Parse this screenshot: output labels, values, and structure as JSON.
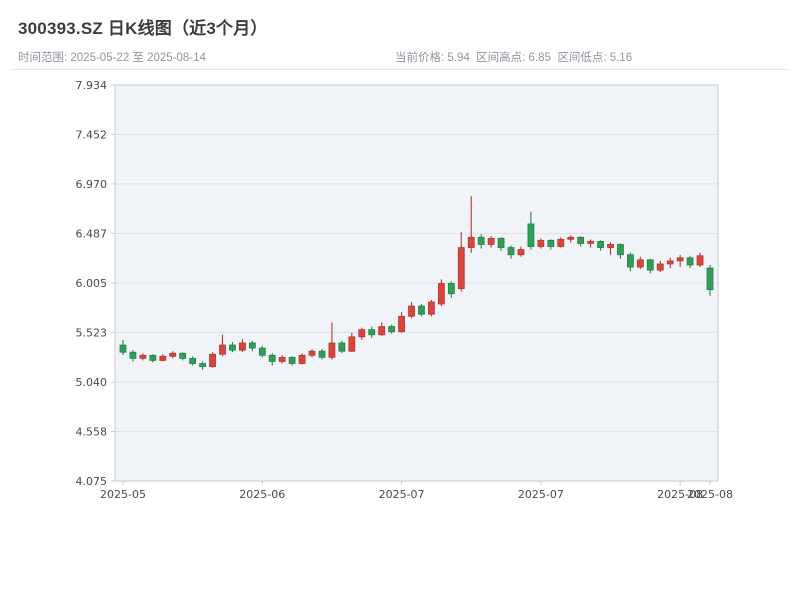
{
  "header": {
    "title": "300393.SZ 日K线图（近3个月）",
    "time_range": "时间范围: 2025-05-22 至 2025-08-14",
    "stats": "当前价格: 5.94  区间高点: 6.85  区间低点: 5.16"
  },
  "chart_data": {
    "type": "candlestick",
    "symbol": "300393.SZ",
    "title": "300393.SZ 日K线图（近3个月）",
    "current_price": 5.94,
    "range_high": 6.85,
    "range_low": 5.16,
    "ylim": [
      4.075,
      7.934
    ],
    "y_ticks": [
      7.934,
      7.452,
      6.97,
      6.487,
      6.005,
      5.523,
      5.04,
      4.558,
      4.075
    ],
    "x_ticks": [
      {
        "i": 0,
        "label": "2025-05"
      },
      {
        "i": 14,
        "label": "2025-06"
      },
      {
        "i": 28,
        "label": "2025-07"
      },
      {
        "i": 42,
        "label": "2025-07"
      },
      {
        "i": 56,
        "label": "2025-08"
      },
      {
        "i": 59,
        "label": "2025-08"
      }
    ],
    "grid": true,
    "legend": "none",
    "colors": {
      "up": "#d9453c",
      "up_border": "#b13a31",
      "down": "#2f9e57",
      "down_border": "#27814a",
      "plot_bg": "#f0f3f7",
      "grid": "#e0e4ea",
      "spine": "#c9ced6"
    },
    "candles": [
      {
        "d": "2025-05-22",
        "o": 5.4,
        "h": 5.45,
        "l": 5.3,
        "c": 5.33
      },
      {
        "d": "2025-05-23",
        "o": 5.33,
        "h": 5.35,
        "l": 5.24,
        "c": 5.27
      },
      {
        "d": "2025-05-26",
        "o": 5.27,
        "h": 5.32,
        "l": 5.25,
        "c": 5.3
      },
      {
        "d": "2025-05-27",
        "o": 5.3,
        "h": 5.31,
        "l": 5.23,
        "c": 5.25
      },
      {
        "d": "2025-05-28",
        "o": 5.25,
        "h": 5.31,
        "l": 5.24,
        "c": 5.29
      },
      {
        "d": "2025-05-29",
        "o": 5.29,
        "h": 5.34,
        "l": 5.27,
        "c": 5.32
      },
      {
        "d": "2025-05-30",
        "o": 5.32,
        "h": 5.33,
        "l": 5.25,
        "c": 5.27
      },
      {
        "d": "2025-06-03",
        "o": 5.27,
        "h": 5.29,
        "l": 5.2,
        "c": 5.22
      },
      {
        "d": "2025-06-04",
        "o": 5.22,
        "h": 5.24,
        "l": 5.16,
        "c": 5.19
      },
      {
        "d": "2025-06-05",
        "o": 5.19,
        "h": 5.33,
        "l": 5.18,
        "c": 5.31
      },
      {
        "d": "2025-06-06",
        "o": 5.31,
        "h": 5.5,
        "l": 5.29,
        "c": 5.4
      },
      {
        "d": "2025-06-09",
        "o": 5.4,
        "h": 5.43,
        "l": 5.33,
        "c": 5.35
      },
      {
        "d": "2025-06-10",
        "o": 5.35,
        "h": 5.46,
        "l": 5.33,
        "c": 5.42
      },
      {
        "d": "2025-06-11",
        "o": 5.42,
        "h": 5.44,
        "l": 5.34,
        "c": 5.37
      },
      {
        "d": "2025-06-12",
        "o": 5.37,
        "h": 5.39,
        "l": 5.28,
        "c": 5.3
      },
      {
        "d": "2025-06-13",
        "o": 5.3,
        "h": 5.32,
        "l": 5.2,
        "c": 5.24
      },
      {
        "d": "2025-06-16",
        "o": 5.24,
        "h": 5.3,
        "l": 5.22,
        "c": 5.28
      },
      {
        "d": "2025-06-17",
        "o": 5.28,
        "h": 5.29,
        "l": 5.2,
        "c": 5.22
      },
      {
        "d": "2025-06-18",
        "o": 5.22,
        "h": 5.32,
        "l": 5.21,
        "c": 5.3
      },
      {
        "d": "2025-06-19",
        "o": 5.3,
        "h": 5.36,
        "l": 5.28,
        "c": 5.34
      },
      {
        "d": "2025-06-20",
        "o": 5.34,
        "h": 5.36,
        "l": 5.26,
        "c": 5.28
      },
      {
        "d": "2025-06-23",
        "o": 5.28,
        "h": 5.62,
        "l": 5.26,
        "c": 5.42
      },
      {
        "d": "2025-06-24",
        "o": 5.42,
        "h": 5.44,
        "l": 5.32,
        "c": 5.34
      },
      {
        "d": "2025-06-25",
        "o": 5.34,
        "h": 5.52,
        "l": 5.33,
        "c": 5.48
      },
      {
        "d": "2025-06-26",
        "o": 5.48,
        "h": 5.57,
        "l": 5.45,
        "c": 5.55
      },
      {
        "d": "2025-06-27",
        "o": 5.55,
        "h": 5.58,
        "l": 5.47,
        "c": 5.5
      },
      {
        "d": "2025-06-30",
        "o": 5.5,
        "h": 5.62,
        "l": 5.49,
        "c": 5.58
      },
      {
        "d": "2025-07-01",
        "o": 5.58,
        "h": 5.6,
        "l": 5.51,
        "c": 5.53
      },
      {
        "d": "2025-07-02",
        "o": 5.53,
        "h": 5.72,
        "l": 5.52,
        "c": 5.68
      },
      {
        "d": "2025-07-03",
        "o": 5.68,
        "h": 5.82,
        "l": 5.66,
        "c": 5.78
      },
      {
        "d": "2025-07-04",
        "o": 5.78,
        "h": 5.8,
        "l": 5.68,
        "c": 5.7
      },
      {
        "d": "2025-07-07",
        "o": 5.7,
        "h": 5.84,
        "l": 5.68,
        "c": 5.82
      },
      {
        "d": "2025-07-08",
        "o": 5.8,
        "h": 6.04,
        "l": 5.78,
        "c": 6.0
      },
      {
        "d": "2025-07-09",
        "o": 6.0,
        "h": 6.02,
        "l": 5.86,
        "c": 5.9
      },
      {
        "d": "2025-07-10",
        "o": 5.95,
        "h": 6.5,
        "l": 5.92,
        "c": 6.35
      },
      {
        "d": "2025-07-11",
        "o": 6.35,
        "h": 6.85,
        "l": 6.3,
        "c": 6.45
      },
      {
        "d": "2025-07-14",
        "o": 6.45,
        "h": 6.48,
        "l": 6.34,
        "c": 6.38
      },
      {
        "d": "2025-07-15",
        "o": 6.38,
        "h": 6.46,
        "l": 6.35,
        "c": 6.44
      },
      {
        "d": "2025-07-16",
        "o": 6.44,
        "h": 6.45,
        "l": 6.32,
        "c": 6.35
      },
      {
        "d": "2025-07-17",
        "o": 6.35,
        "h": 6.37,
        "l": 6.24,
        "c": 6.28
      },
      {
        "d": "2025-07-18",
        "o": 6.28,
        "h": 6.36,
        "l": 6.26,
        "c": 6.33
      },
      {
        "d": "2025-07-21",
        "o": 6.58,
        "h": 6.7,
        "l": 6.33,
        "c": 6.36
      },
      {
        "d": "2025-07-22",
        "o": 6.36,
        "h": 6.44,
        "l": 6.34,
        "c": 6.42
      },
      {
        "d": "2025-07-23",
        "o": 6.42,
        "h": 6.43,
        "l": 6.33,
        "c": 6.36
      },
      {
        "d": "2025-07-24",
        "o": 6.36,
        "h": 6.45,
        "l": 6.35,
        "c": 6.43
      },
      {
        "d": "2025-07-25",
        "o": 6.43,
        "h": 6.47,
        "l": 6.4,
        "c": 6.45
      },
      {
        "d": "2025-07-28",
        "o": 6.45,
        "h": 6.46,
        "l": 6.36,
        "c": 6.39
      },
      {
        "d": "2025-07-29",
        "o": 6.39,
        "h": 6.43,
        "l": 6.35,
        "c": 6.41
      },
      {
        "d": "2025-07-30",
        "o": 6.41,
        "h": 6.42,
        "l": 6.32,
        "c": 6.35
      },
      {
        "d": "2025-07-31",
        "o": 6.35,
        "h": 6.4,
        "l": 6.28,
        "c": 6.38
      },
      {
        "d": "2025-08-01",
        "o": 6.38,
        "h": 6.39,
        "l": 6.24,
        "c": 6.28
      },
      {
        "d": "2025-08-04",
        "o": 6.28,
        "h": 6.3,
        "l": 6.12,
        "c": 6.16
      },
      {
        "d": "2025-08-05",
        "o": 6.16,
        "h": 6.26,
        "l": 6.14,
        "c": 6.23
      },
      {
        "d": "2025-08-06",
        "o": 6.23,
        "h": 6.24,
        "l": 6.1,
        "c": 6.13
      },
      {
        "d": "2025-08-07",
        "o": 6.13,
        "h": 6.22,
        "l": 6.11,
        "c": 6.19
      },
      {
        "d": "2025-08-08",
        "o": 6.19,
        "h": 6.25,
        "l": 6.15,
        "c": 6.22
      },
      {
        "d": "2025-08-11",
        "o": 6.22,
        "h": 6.28,
        "l": 6.16,
        "c": 6.25
      },
      {
        "d": "2025-08-12",
        "o": 6.25,
        "h": 6.27,
        "l": 6.15,
        "c": 6.18
      },
      {
        "d": "2025-08-13",
        "o": 6.18,
        "h": 6.3,
        "l": 6.16,
        "c": 6.27
      },
      {
        "d": "2025-08-14",
        "o": 6.15,
        "h": 6.18,
        "l": 5.88,
        "c": 5.94
      }
    ]
  }
}
